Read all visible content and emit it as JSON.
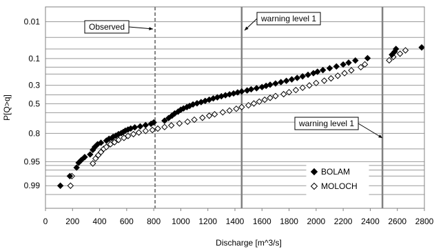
{
  "chart_data": {
    "type": "scatter",
    "title": "",
    "xlabel": "Discharge [m^3/s]",
    "ylabel": "P[Q>q]",
    "xlim": [
      0,
      2800
    ],
    "x_ticks": [
      0,
      200,
      400,
      600,
      800,
      1000,
      1200,
      1400,
      1600,
      1800,
      2000,
      2200,
      2400,
      2600,
      2800
    ],
    "y_scale": "probability (exceedance, reversed)",
    "y_tick_labels": [
      "0.01",
      "0.1",
      "0.3",
      "0.5",
      "0.8",
      "0.95",
      "0.99"
    ],
    "grid": "horizontal",
    "legend": "bottom-right inside plot",
    "series": [
      {
        "name": "BOLAM",
        "marker": "filled-diamond",
        "color": "#000000",
        "points": [
          [
            110,
            0.99
          ],
          [
            180,
            0.98
          ],
          [
            230,
            0.965
          ],
          [
            245,
            0.953
          ],
          [
            265,
            0.945
          ],
          [
            290,
            0.935
          ],
          [
            330,
            0.925
          ],
          [
            350,
            0.905
          ],
          [
            365,
            0.89
          ],
          [
            385,
            0.875
          ],
          [
            410,
            0.866
          ],
          [
            450,
            0.853
          ],
          [
            470,
            0.84
          ],
          [
            490,
            0.835
          ],
          [
            500,
            0.826
          ],
          [
            520,
            0.818
          ],
          [
            540,
            0.806
          ],
          [
            560,
            0.798
          ],
          [
            575,
            0.789
          ],
          [
            590,
            0.778
          ],
          [
            610,
            0.768
          ],
          [
            630,
            0.759
          ],
          [
            660,
            0.749
          ],
          [
            700,
            0.74
          ],
          [
            740,
            0.728
          ],
          [
            780,
            0.716
          ],
          [
            800,
            0.702
          ],
          [
            880,
            0.685
          ],
          [
            910,
            0.658
          ],
          [
            935,
            0.632
          ],
          [
            955,
            0.609
          ],
          [
            980,
            0.589
          ],
          [
            1000,
            0.568
          ],
          [
            1020,
            0.553
          ],
          [
            1045,
            0.538
          ],
          [
            1065,
            0.525
          ],
          [
            1090,
            0.508
          ],
          [
            1120,
            0.495
          ],
          [
            1150,
            0.482
          ],
          [
            1180,
            0.468
          ],
          [
            1210,
            0.455
          ],
          [
            1240,
            0.44
          ],
          [
            1270,
            0.428
          ],
          [
            1300,
            0.416
          ],
          [
            1330,
            0.405
          ],
          [
            1360,
            0.395
          ],
          [
            1390,
            0.385
          ],
          [
            1420,
            0.374
          ],
          [
            1450,
            0.364
          ],
          [
            1490,
            0.353
          ],
          [
            1520,
            0.341
          ],
          [
            1560,
            0.33
          ],
          [
            1600,
            0.318
          ],
          [
            1630,
            0.306
          ],
          [
            1660,
            0.295
          ],
          [
            1700,
            0.283
          ],
          [
            1740,
            0.27
          ],
          [
            1780,
            0.258
          ],
          [
            1820,
            0.245
          ],
          [
            1860,
            0.232
          ],
          [
            1900,
            0.219
          ],
          [
            1940,
            0.206
          ],
          [
            1980,
            0.193
          ],
          [
            2010,
            0.182
          ],
          [
            2050,
            0.17
          ],
          [
            2100,
            0.157
          ],
          [
            2150,
            0.145
          ],
          [
            2200,
            0.133
          ],
          [
            2240,
            0.122
          ],
          [
            2290,
            0.11
          ],
          [
            2380,
            0.098
          ],
          [
            2560,
            0.082
          ],
          [
            2580,
            0.07
          ],
          [
            2590,
            0.06
          ],
          [
            2780,
            0.055
          ]
        ]
      },
      {
        "name": "MOLOCH",
        "marker": "open-diamond",
        "color": "#000000",
        "points": [
          [
            185,
            0.99
          ],
          [
            195,
            0.98
          ],
          [
            350,
            0.955
          ],
          [
            370,
            0.94
          ],
          [
            390,
            0.928
          ],
          [
            410,
            0.915
          ],
          [
            430,
            0.9
          ],
          [
            450,
            0.89
          ],
          [
            480,
            0.875
          ],
          [
            510,
            0.863
          ],
          [
            540,
            0.848
          ],
          [
            580,
            0.834
          ],
          [
            610,
            0.82
          ],
          [
            650,
            0.806
          ],
          [
            690,
            0.793
          ],
          [
            740,
            0.78
          ],
          [
            790,
            0.772
          ],
          [
            830,
            0.76
          ],
          [
            880,
            0.746
          ],
          [
            930,
            0.731
          ],
          [
            990,
            0.712
          ],
          [
            1050,
            0.695
          ],
          [
            1100,
            0.675
          ],
          [
            1160,
            0.655
          ],
          [
            1210,
            0.633
          ],
          [
            1250,
            0.618
          ],
          [
            1310,
            0.596
          ],
          [
            1360,
            0.577
          ],
          [
            1410,
            0.557
          ],
          [
            1450,
            0.538
          ],
          [
            1500,
            0.518
          ],
          [
            1540,
            0.497
          ],
          [
            1580,
            0.476
          ],
          [
            1620,
            0.455
          ],
          [
            1660,
            0.434
          ],
          [
            1700,
            0.414
          ],
          [
            1760,
            0.393
          ],
          [
            1800,
            0.372
          ],
          [
            1850,
            0.349
          ],
          [
            1900,
            0.325
          ],
          [
            1950,
            0.302
          ],
          [
            2000,
            0.278
          ],
          [
            2060,
            0.257
          ],
          [
            2110,
            0.236
          ],
          [
            2160,
            0.214
          ],
          [
            2210,
            0.193
          ],
          [
            2260,
            0.172
          ],
          [
            2330,
            0.15
          ],
          [
            2360,
            0.132
          ],
          [
            2540,
            0.109
          ],
          [
            2570,
            0.092
          ],
          [
            2620,
            0.078
          ],
          [
            2660,
            0.065
          ]
        ]
      }
    ],
    "reference_lines": [
      {
        "orientation": "vertical",
        "x": 810,
        "style": "dashed",
        "label": "Observed"
      },
      {
        "orientation": "vertical",
        "x": 1450,
        "style": "solid",
        "label": "warning level 1"
      },
      {
        "orientation": "vertical",
        "x": 2490,
        "style": "solid",
        "label": "warning level 1"
      }
    ]
  }
}
